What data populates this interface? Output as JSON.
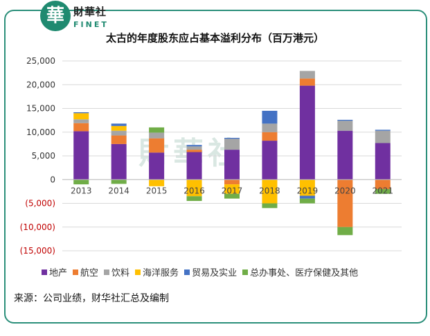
{
  "brand": {
    "logo_char": "華",
    "cn": "財華社",
    "en": "FINET"
  },
  "watermark": "財華社",
  "chart_data": {
    "type": "bar",
    "stacked": true,
    "title": "太古的年度股东应占基本溢利分布（百万港元）",
    "categories": [
      "2013",
      "2014",
      "2015",
      "2016",
      "2017",
      "2018",
      "2019",
      "2020",
      "2021"
    ],
    "ylim": [
      -15000,
      25000
    ],
    "yticks": [
      25000,
      20000,
      15000,
      10000,
      5000,
      0,
      -5000,
      -10000,
      -15000
    ],
    "ytick_labels": [
      "25,000",
      "20,000",
      "15,000",
      "10,000",
      "5,000",
      "0",
      "(5,000)",
      "(10,000)",
      "(15,000)"
    ],
    "grid": true,
    "legend_position": "bottom",
    "series": [
      {
        "name": "地产",
        "color": "#7030a0",
        "values": [
          10200,
          7500,
          5700,
          5800,
          6300,
          8200,
          19800,
          10300,
          7700
        ]
      },
      {
        "name": "航空",
        "color": "#ed7d31",
        "values": [
          1700,
          1800,
          3000,
          500,
          -1000,
          1800,
          1500,
          -10000,
          -2000
        ]
      },
      {
        "name": "饮料",
        "color": "#a5a5a5",
        "values": [
          800,
          1000,
          1200,
          700,
          2300,
          1800,
          1600,
          2100,
          2600
        ]
      },
      {
        "name": "海洋服务",
        "color": "#ffc000",
        "values": [
          1300,
          1000,
          -1400,
          -3500,
          -2000,
          -5000,
          -3400,
          0,
          0
        ]
      },
      {
        "name": "贸易及实业",
        "color": "#4472c4",
        "values": [
          200,
          500,
          0,
          300,
          200,
          2700,
          -600,
          200,
          200
        ]
      },
      {
        "name": "总办事处、医疗保健及其他",
        "color": "#70ad47",
        "values": [
          -1000,
          -900,
          1100,
          -1000,
          -1000,
          -1000,
          -1000,
          -1700,
          -1000
        ]
      }
    ]
  },
  "source": "来源：公司业绩，财华社汇总及编制"
}
